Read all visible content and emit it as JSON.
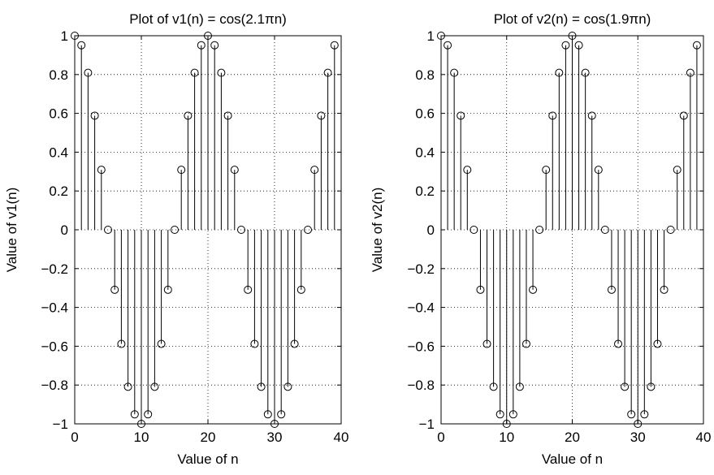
{
  "chart_data": [
    {
      "type": "stem",
      "title": "Plot of v1(n) = cos(2.1πn)",
      "xlabel": "Value of n",
      "ylabel": "Value of v1(n)",
      "xlim": [
        0,
        40
      ],
      "ylim": [
        -1,
        1
      ],
      "xticks": [
        0,
        10,
        20,
        30,
        40
      ],
      "yticks": [
        -1,
        -0.8,
        -0.6,
        -0.4,
        -0.2,
        0,
        0.2,
        0.4,
        0.6,
        0.8,
        1
      ],
      "ytick_labels": [
        "−1",
        "−0.8",
        "−0.6",
        "−0.4",
        "−0.2",
        "0",
        "0.2",
        "0.4",
        "0.6",
        "0.8",
        "1"
      ],
      "grid": true,
      "marker": "open-circle",
      "x": [
        0,
        1,
        2,
        3,
        4,
        5,
        6,
        7,
        8,
        9,
        10,
        11,
        12,
        13,
        14,
        15,
        16,
        17,
        18,
        19,
        20,
        21,
        22,
        23,
        24,
        25,
        26,
        27,
        28,
        29,
        30,
        31,
        32,
        33,
        34,
        35,
        36,
        37,
        38,
        39
      ],
      "values": [
        1,
        0.951,
        0.809,
        0.588,
        0.309,
        0,
        -0.309,
        -0.588,
        -0.809,
        -0.951,
        -1,
        -0.951,
        -0.809,
        -0.588,
        -0.309,
        0,
        0.309,
        0.588,
        0.809,
        0.951,
        1,
        0.951,
        0.809,
        0.588,
        0.309,
        0,
        -0.309,
        -0.588,
        -0.809,
        -0.951,
        -1,
        -0.951,
        -0.809,
        -0.588,
        -0.309,
        0,
        0.309,
        0.588,
        0.809,
        0.951
      ]
    },
    {
      "type": "stem",
      "title": "Plot of v2(n) = cos(1.9πn)",
      "xlabel": "Value of n",
      "ylabel": "Value of v2(n)",
      "xlim": [
        0,
        40
      ],
      "ylim": [
        -1,
        1
      ],
      "xticks": [
        0,
        10,
        20,
        30,
        40
      ],
      "yticks": [
        -1,
        -0.8,
        -0.6,
        -0.4,
        -0.2,
        0,
        0.2,
        0.4,
        0.6,
        0.8,
        1
      ],
      "ytick_labels": [
        "−1",
        "−0.8",
        "−0.6",
        "−0.4",
        "−0.2",
        "0",
        "0.2",
        "0.4",
        "0.6",
        "0.8",
        "1"
      ],
      "grid": true,
      "marker": "open-circle",
      "x": [
        0,
        1,
        2,
        3,
        4,
        5,
        6,
        7,
        8,
        9,
        10,
        11,
        12,
        13,
        14,
        15,
        16,
        17,
        18,
        19,
        20,
        21,
        22,
        23,
        24,
        25,
        26,
        27,
        28,
        29,
        30,
        31,
        32,
        33,
        34,
        35,
        36,
        37,
        38,
        39
      ],
      "values": [
        1,
        0.951,
        0.809,
        0.588,
        0.309,
        0,
        -0.309,
        -0.588,
        -0.809,
        -0.951,
        -1,
        -0.951,
        -0.809,
        -0.588,
        -0.309,
        0,
        0.309,
        0.588,
        0.809,
        0.951,
        1,
        0.951,
        0.809,
        0.588,
        0.309,
        0,
        -0.309,
        -0.588,
        -0.809,
        -0.951,
        -1,
        -0.951,
        -0.809,
        -0.588,
        -0.309,
        0,
        0.309,
        0.588,
        0.809,
        0.951
      ]
    }
  ]
}
